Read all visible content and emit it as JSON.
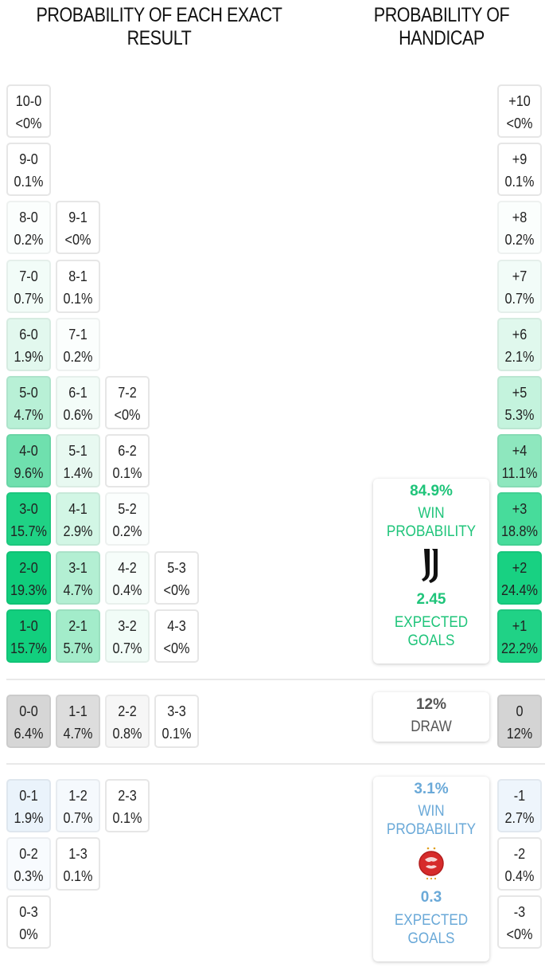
{
  "headers": {
    "exact_result": "PROBABILITY OF EACH EXACT RESULT",
    "handicap": "PROBABILITY OF HANDICAP"
  },
  "colors": {
    "home_accent": "#1fc47a",
    "away_accent": "#6aa9d8",
    "draw_text": "#555555"
  },
  "home_results": [
    {
      "score": "10-0",
      "prob": "<0%",
      "col": 0,
      "row": 0,
      "bg": "#ffffff"
    },
    {
      "score": "9-0",
      "prob": "0.1%",
      "col": 0,
      "row": 1,
      "bg": "#ffffff"
    },
    {
      "score": "8-0",
      "prob": "0.2%",
      "col": 0,
      "row": 2,
      "bg": "#fbfefd"
    },
    {
      "score": "9-1",
      "prob": "<0%",
      "col": 1,
      "row": 2,
      "bg": "#ffffff"
    },
    {
      "score": "7-0",
      "prob": "0.7%",
      "col": 0,
      "row": 3,
      "bg": "#f2fcf8"
    },
    {
      "score": "8-1",
      "prob": "0.1%",
      "col": 1,
      "row": 3,
      "bg": "#ffffff"
    },
    {
      "score": "6-0",
      "prob": "1.9%",
      "col": 0,
      "row": 4,
      "bg": "#e2f8ee"
    },
    {
      "score": "7-1",
      "prob": "0.2%",
      "col": 1,
      "row": 4,
      "bg": "#fbfefd"
    },
    {
      "score": "5-0",
      "prob": "4.7%",
      "col": 0,
      "row": 5,
      "bg": "#b8f0d6"
    },
    {
      "score": "6-1",
      "prob": "0.6%",
      "col": 1,
      "row": 5,
      "bg": "#f3fcf8"
    },
    {
      "score": "7-2",
      "prob": "<0%",
      "col": 2,
      "row": 5,
      "bg": "#ffffff"
    },
    {
      "score": "4-0",
      "prob": "9.6%",
      "col": 0,
      "row": 6,
      "bg": "#6fe0ae"
    },
    {
      "score": "5-1",
      "prob": "1.4%",
      "col": 1,
      "row": 6,
      "bg": "#e8f9f1"
    },
    {
      "score": "6-2",
      "prob": "0.1%",
      "col": 2,
      "row": 6,
      "bg": "#ffffff"
    },
    {
      "score": "3-0",
      "prob": "15.7%",
      "col": 0,
      "row": 7,
      "bg": "#1fd285"
    },
    {
      "score": "4-1",
      "prob": "2.9%",
      "col": 1,
      "row": 7,
      "bg": "#d2f6e5"
    },
    {
      "score": "5-2",
      "prob": "0.2%",
      "col": 2,
      "row": 7,
      "bg": "#fbfefd"
    },
    {
      "score": "2-0",
      "prob": "19.3%",
      "col": 0,
      "row": 8,
      "bg": "#10cd7c"
    },
    {
      "score": "3-1",
      "prob": "4.7%",
      "col": 1,
      "row": 8,
      "bg": "#b3efd3"
    },
    {
      "score": "4-2",
      "prob": "0.4%",
      "col": 2,
      "row": 8,
      "bg": "#f6fdfa"
    },
    {
      "score": "5-3",
      "prob": "<0%",
      "col": 3,
      "row": 8,
      "bg": "#ffffff"
    },
    {
      "score": "1-0",
      "prob": "15.7%",
      "col": 0,
      "row": 9,
      "bg": "#12cf7e"
    },
    {
      "score": "2-1",
      "prob": "5.7%",
      "col": 1,
      "row": 9,
      "bg": "#a3ecca"
    },
    {
      "score": "3-2",
      "prob": "0.7%",
      "col": 2,
      "row": 9,
      "bg": "#f1fcf7"
    },
    {
      "score": "4-3",
      "prob": "<0%",
      "col": 3,
      "row": 9,
      "bg": "#ffffff"
    }
  ],
  "draw_results": [
    {
      "score": "0-0",
      "prob": "6.4%",
      "col": 0,
      "bg": "#d6d6d6"
    },
    {
      "score": "1-1",
      "prob": "4.7%",
      "col": 1,
      "bg": "#dddddd"
    },
    {
      "score": "2-2",
      "prob": "0.8%",
      "col": 2,
      "bg": "#f6f6f6"
    },
    {
      "score": "3-3",
      "prob": "0.1%",
      "col": 3,
      "bg": "#ffffff"
    }
  ],
  "away_results": [
    {
      "score": "0-1",
      "prob": "1.9%",
      "col": 0,
      "row": 0,
      "bg": "#eaf3fb"
    },
    {
      "score": "1-2",
      "prob": "0.7%",
      "col": 1,
      "row": 0,
      "bg": "#f5f9fd"
    },
    {
      "score": "2-3",
      "prob": "0.1%",
      "col": 2,
      "row": 0,
      "bg": "#ffffff"
    },
    {
      "score": "0-2",
      "prob": "0.3%",
      "col": 0,
      "row": 1,
      "bg": "#f8fbfe"
    },
    {
      "score": "1-3",
      "prob": "0.1%",
      "col": 1,
      "row": 1,
      "bg": "#ffffff"
    },
    {
      "score": "0-3",
      "prob": "0%",
      "col": 0,
      "row": 2,
      "bg": "#ffffff"
    }
  ],
  "handicap_home": [
    {
      "label": "+10",
      "prob": "<0%",
      "row": 0,
      "bg": "#ffffff"
    },
    {
      "label": "+9",
      "prob": "0.1%",
      "row": 1,
      "bg": "#ffffff"
    },
    {
      "label": "+8",
      "prob": "0.2%",
      "row": 2,
      "bg": "#fbfefd"
    },
    {
      "label": "+7",
      "prob": "0.7%",
      "row": 3,
      "bg": "#f2fcf8"
    },
    {
      "label": "+6",
      "prob": "2.1%",
      "row": 4,
      "bg": "#e0f8ed"
    },
    {
      "label": "+5",
      "prob": "5.3%",
      "row": 5,
      "bg": "#c4f3dd"
    },
    {
      "label": "+4",
      "prob": "11.1%",
      "row": 6,
      "bg": "#8ee7be"
    },
    {
      "label": "+3",
      "prob": "18.8%",
      "row": 7,
      "bg": "#47dc9b"
    },
    {
      "label": "+2",
      "prob": "24.4%",
      "row": 8,
      "bg": "#18d182"
    },
    {
      "label": "+1",
      "prob": "22.2%",
      "row": 9,
      "bg": "#20d286"
    }
  ],
  "handicap_draw": {
    "label": "0",
    "prob": "12%",
    "bg": "#d4d4d4"
  },
  "handicap_away": [
    {
      "label": "-1",
      "prob": "2.7%",
      "row": 0,
      "bg": "#eef5fc"
    },
    {
      "label": "-2",
      "prob": "0.4%",
      "row": 1,
      "bg": "#ffffff"
    },
    {
      "label": "-3",
      "prob": "<0%",
      "row": 2,
      "bg": "#ffffff"
    }
  ],
  "home_card": {
    "win_probability": "84.9%",
    "win_label_1": "WIN",
    "win_label_2": "PROBABILITY",
    "crest_icon": "juventus-crest-icon",
    "expected_goals": "2.45",
    "xg_label_1": "EXPECTED",
    "xg_label_2": "GOALS"
  },
  "draw_card": {
    "probability": "12%",
    "label": "DRAW"
  },
  "away_card": {
    "win_probability": "3.1%",
    "win_label_1": "WIN",
    "win_label_2": "PROBABILITY",
    "crest_icon": "wydad-crest-icon",
    "expected_goals": "0.3",
    "xg_label_1": "EXPECTED",
    "xg_label_2": "GOALS"
  },
  "chart_data": {
    "type": "heatmap",
    "title": "Probability of each exact result / Probability of handicap",
    "home_win": {
      "scores": [
        "10-0",
        "9-0",
        "8-0",
        "9-1",
        "7-0",
        "8-1",
        "6-0",
        "7-1",
        "5-0",
        "6-1",
        "7-2",
        "4-0",
        "5-1",
        "6-2",
        "3-0",
        "4-1",
        "5-2",
        "2-0",
        "3-1",
        "4-2",
        "5-3",
        "1-0",
        "2-1",
        "3-2",
        "4-3"
      ],
      "values": [
        "<0%",
        "0.1%",
        "0.2%",
        "<0%",
        "0.7%",
        "0.1%",
        "1.9%",
        "0.2%",
        "4.7%",
        "0.6%",
        "<0%",
        "9.6%",
        "1.4%",
        "0.1%",
        "15.7%",
        "2.9%",
        "0.2%",
        "19.3%",
        "4.7%",
        "0.4%",
        "<0%",
        "15.7%",
        "5.7%",
        "0.7%",
        "<0%"
      ]
    },
    "draw": {
      "scores": [
        "0-0",
        "1-1",
        "2-2",
        "3-3"
      ],
      "values": [
        "6.4%",
        "4.7%",
        "0.8%",
        "0.1%"
      ]
    },
    "away_win": {
      "scores": [
        "0-1",
        "1-2",
        "2-3",
        "0-2",
        "1-3",
        "0-3"
      ],
      "values": [
        "1.9%",
        "0.7%",
        "0.1%",
        "0.3%",
        "0.1%",
        "0%"
      ]
    },
    "handicap": {
      "margins": [
        "+10",
        "+9",
        "+8",
        "+7",
        "+6",
        "+5",
        "+4",
        "+3",
        "+2",
        "+1",
        "0",
        "-1",
        "-2",
        "-3"
      ],
      "values": [
        "<0%",
        "0.1%",
        "0.2%",
        "0.7%",
        "2.1%",
        "5.3%",
        "11.1%",
        "18.8%",
        "24.4%",
        "22.2%",
        "12%",
        "2.7%",
        "0.4%",
        "<0%"
      ]
    },
    "summary": {
      "home_win_probability": 84.9,
      "draw_probability": 12,
      "away_win_probability": 3.1,
      "home_expected_goals": 2.45,
      "away_expected_goals": 0.3
    }
  }
}
